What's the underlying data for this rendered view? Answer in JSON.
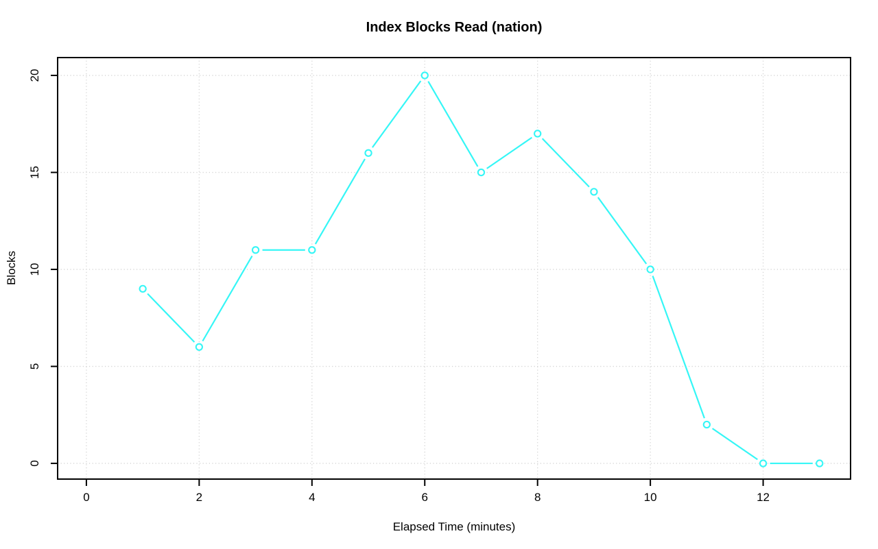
{
  "chart_data": {
    "type": "line",
    "title": "Index Blocks Read (nation)",
    "xlabel": "Elapsed Time (minutes)",
    "ylabel": "Blocks",
    "x": [
      1,
      2,
      3,
      4,
      5,
      6,
      7,
      8,
      9,
      10,
      11,
      12,
      13
    ],
    "y": [
      9,
      6,
      11,
      11,
      16,
      20,
      15,
      17,
      14,
      10,
      2,
      0,
      0
    ],
    "x_ticks": [
      0,
      2,
      4,
      6,
      8,
      10,
      12
    ],
    "y_ticks": [
      0,
      5,
      10,
      15,
      20
    ],
    "xlim": [
      -0.51,
      13.55
    ],
    "ylim": [
      -0.81,
      20.92
    ],
    "grid": "dotted",
    "legend": "none",
    "marker": "open-circle",
    "line_style": "segments-with-point-gaps",
    "colors": {
      "line": "#35F6F6",
      "marker_stroke": "#35F6F6",
      "marker_fill": "#FFFFFF",
      "grid": "#D2D2D2",
      "axis": "#000000",
      "text": "#000000",
      "background": "#FFFFFF"
    }
  }
}
